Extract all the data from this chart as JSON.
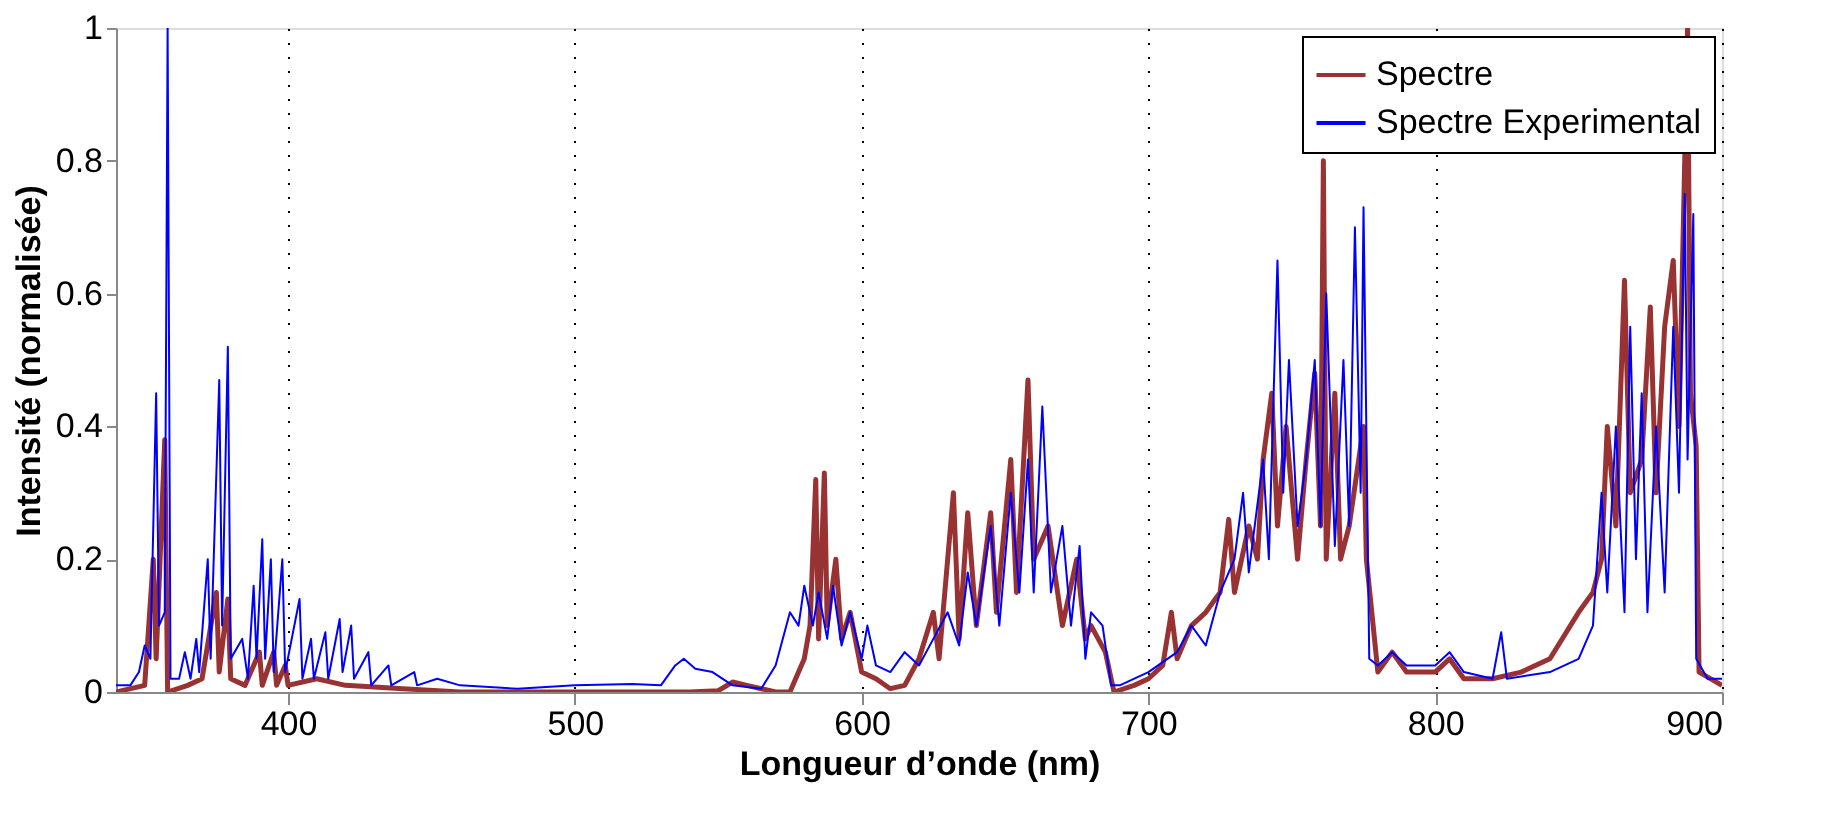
{
  "chart_data": {
    "type": "line",
    "xlabel": "Longueur d’onde (nm)",
    "ylabel": "Intensité (normalisée)",
    "xlim": [
      340,
      900
    ],
    "xticks": [
      400,
      500,
      600,
      700,
      800,
      900
    ],
    "ylim": [
      0,
      1
    ],
    "yticks": [
      0,
      0.2,
      0.4,
      0.6,
      0.8,
      1
    ],
    "grid": "x",
    "legend": "top right",
    "marker": "none",
    "line_style": "solid",
    "series": [
      {
        "name": "Spectre",
        "color": "#993333",
        "x": [
          340,
          350,
          353,
          354,
          357,
          358,
          365,
          370,
          375,
          376,
          379,
          380,
          385,
          390,
          391,
          395,
          396,
          399,
          400,
          410,
          420,
          440,
          460,
          540,
          550,
          555,
          560,
          570,
          575,
          580,
          582,
          584,
          585,
          587,
          588,
          591,
          593,
          596,
          600,
          605,
          610,
          615,
          620,
          625,
          627,
          632,
          634,
          637,
          640,
          645,
          647,
          652,
          654,
          658,
          660,
          665,
          670,
          675,
          678,
          680,
          685,
          688,
          695,
          700,
          705,
          708,
          710,
          715,
          720,
          725,
          728,
          730,
          735,
          738,
          740,
          743,
          745,
          748,
          752,
          755,
          758,
          760,
          761,
          762,
          765,
          767,
          770,
          775,
          776,
          780,
          785,
          790,
          800,
          805,
          810,
          820,
          830,
          840,
          850,
          855,
          858,
          860,
          863,
          866,
          868,
          872,
          875,
          877,
          880,
          883,
          885,
          888,
          889,
          891,
          892,
          900
        ],
        "values": [
          0,
          0.01,
          0.2,
          0.05,
          0.38,
          0,
          0.01,
          0.02,
          0.15,
          0.03,
          0.14,
          0.02,
          0.01,
          0.06,
          0.01,
          0.06,
          0.01,
          0.04,
          0.01,
          0.02,
          0.01,
          0.005,
          0,
          0,
          0.002,
          0.015,
          0.01,
          0,
          0,
          0.05,
          0.1,
          0.32,
          0.08,
          0.33,
          0.1,
          0.2,
          0.08,
          0.12,
          0.03,
          0.02,
          0.005,
          0.01,
          0.05,
          0.12,
          0.05,
          0.3,
          0.08,
          0.27,
          0.1,
          0.27,
          0.12,
          0.35,
          0.15,
          0.47,
          0.2,
          0.25,
          0.1,
          0.2,
          0.08,
          0.1,
          0.06,
          0,
          0.01,
          0.02,
          0.04,
          0.12,
          0.05,
          0.1,
          0.12,
          0.15,
          0.26,
          0.15,
          0.25,
          0.2,
          0.35,
          0.45,
          0.25,
          0.4,
          0.2,
          0.35,
          0.48,
          0.25,
          0.8,
          0.2,
          0.45,
          0.2,
          0.25,
          0.4,
          0.2,
          0.03,
          0.06,
          0.03,
          0.03,
          0.05,
          0.02,
          0.02,
          0.03,
          0.05,
          0.12,
          0.15,
          0.2,
          0.4,
          0.25,
          0.62,
          0.3,
          0.35,
          0.58,
          0.3,
          0.55,
          0.65,
          0.4,
          1.0,
          0.45,
          0.37,
          0.03,
          0.01
        ]
      },
      {
        "name": "Spectre Experimental",
        "color": "#0000ff",
        "x": [
          340,
          345,
          348,
          350,
          352,
          354,
          355,
          357,
          358,
          359,
          362,
          364,
          366,
          368,
          369,
          372,
          373,
          376,
          377,
          379,
          380,
          384,
          386,
          388,
          389,
          391,
          392,
          394,
          395,
          398,
          399,
          404,
          405,
          408,
          409,
          413,
          414,
          418,
          419,
          422,
          423,
          428,
          429,
          435,
          436,
          444,
          445,
          452,
          460,
          480,
          500,
          520,
          530,
          535,
          538,
          542,
          548,
          555,
          565,
          570,
          575,
          578,
          580,
          583,
          585,
          588,
          590,
          593,
          596,
          600,
          602,
          605,
          610,
          615,
          620,
          625,
          630,
          634,
          637,
          640,
          645,
          648,
          652,
          655,
          658,
          660,
          663,
          666,
          670,
          673,
          676,
          678,
          680,
          684,
          687,
          690,
          700,
          710,
          715,
          720,
          725,
          730,
          733,
          735,
          740,
          742,
          745,
          747,
          749,
          752,
          755,
          758,
          760,
          762,
          765,
          768,
          770,
          772,
          774,
          775,
          777,
          780,
          785,
          790,
          800,
          805,
          810,
          820,
          823,
          825,
          840,
          850,
          855,
          858,
          860,
          863,
          866,
          868,
          870,
          872,
          874,
          877,
          880,
          883,
          885,
          887,
          888,
          890,
          891,
          895,
          900
        ],
        "values": [
          0.01,
          0.01,
          0.03,
          0.07,
          0.05,
          0.45,
          0.1,
          0.12,
          1.0,
          0.02,
          0.02,
          0.06,
          0.02,
          0.08,
          0.03,
          0.2,
          0.05,
          0.47,
          0.1,
          0.52,
          0.05,
          0.08,
          0.02,
          0.16,
          0.05,
          0.23,
          0.05,
          0.2,
          0.03,
          0.2,
          0.03,
          0.14,
          0.02,
          0.08,
          0.02,
          0.09,
          0.02,
          0.11,
          0.03,
          0.1,
          0.02,
          0.06,
          0.01,
          0.04,
          0.01,
          0.03,
          0.01,
          0.02,
          0.01,
          0.005,
          0.01,
          0.012,
          0.01,
          0.04,
          0.05,
          0.035,
          0.03,
          0.01,
          0.005,
          0.04,
          0.12,
          0.1,
          0.16,
          0.1,
          0.15,
          0.08,
          0.16,
          0.07,
          0.12,
          0.05,
          0.1,
          0.04,
          0.03,
          0.06,
          0.04,
          0.08,
          0.12,
          0.07,
          0.18,
          0.1,
          0.25,
          0.1,
          0.3,
          0.15,
          0.35,
          0.15,
          0.43,
          0.15,
          0.25,
          0.1,
          0.22,
          0.05,
          0.12,
          0.1,
          0.01,
          0.01,
          0.03,
          0.06,
          0.1,
          0.07,
          0.15,
          0.2,
          0.3,
          0.18,
          0.35,
          0.2,
          0.65,
          0.3,
          0.5,
          0.25,
          0.35,
          0.5,
          0.25,
          0.6,
          0.22,
          0.5,
          0.25,
          0.7,
          0.3,
          0.73,
          0.05,
          0.04,
          0.06,
          0.04,
          0.04,
          0.06,
          0.03,
          0.02,
          0.09,
          0.02,
          0.03,
          0.05,
          0.1,
          0.3,
          0.15,
          0.4,
          0.12,
          0.55,
          0.2,
          0.45,
          0.12,
          0.4,
          0.15,
          0.55,
          0.3,
          0.75,
          0.35,
          0.72,
          0.05,
          0.02,
          0.02
        ]
      }
    ]
  }
}
